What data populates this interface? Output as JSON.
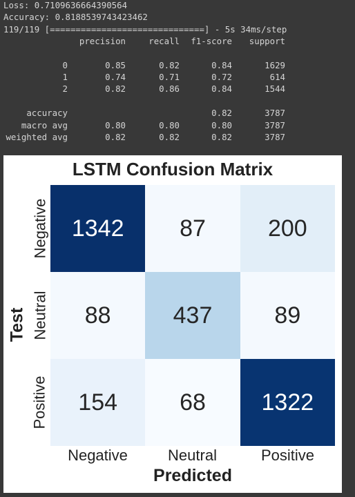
{
  "console": {
    "loss_line": "Loss: 0.7109636664390564",
    "accuracy_line": "Accuracy: 0.8188539743423462",
    "progress_line": "119/119 [==============================] - 5s 34ms/step",
    "report": {
      "headers": [
        "",
        "precision",
        "recall",
        "f1-score",
        "support"
      ],
      "rows": [
        [
          "0",
          "0.85",
          "0.82",
          "0.84",
          "1629"
        ],
        [
          "1",
          "0.74",
          "0.71",
          "0.72",
          "614"
        ],
        [
          "2",
          "0.82",
          "0.86",
          "0.84",
          "1544"
        ]
      ],
      "summary": [
        [
          "accuracy",
          "",
          "",
          "0.82",
          "3787"
        ],
        [
          "macro avg",
          "0.80",
          "0.80",
          "0.80",
          "3787"
        ],
        [
          "weighted avg",
          "0.82",
          "0.82",
          "0.82",
          "3787"
        ]
      ]
    }
  },
  "chart_data": {
    "type": "heatmap",
    "title": "LSTM Confusion Matrix",
    "xlabel": "Predicted",
    "ylabel": "Test",
    "x_categories": [
      "Negative",
      "Neutral",
      "Positive"
    ],
    "y_categories": [
      "Negative",
      "Neutral",
      "Positive"
    ],
    "values": [
      [
        1342,
        87,
        200
      ],
      [
        88,
        437,
        89
      ],
      [
        154,
        68,
        1322
      ]
    ],
    "colormap": "Blues",
    "colorbar": false,
    "annotations": true
  }
}
